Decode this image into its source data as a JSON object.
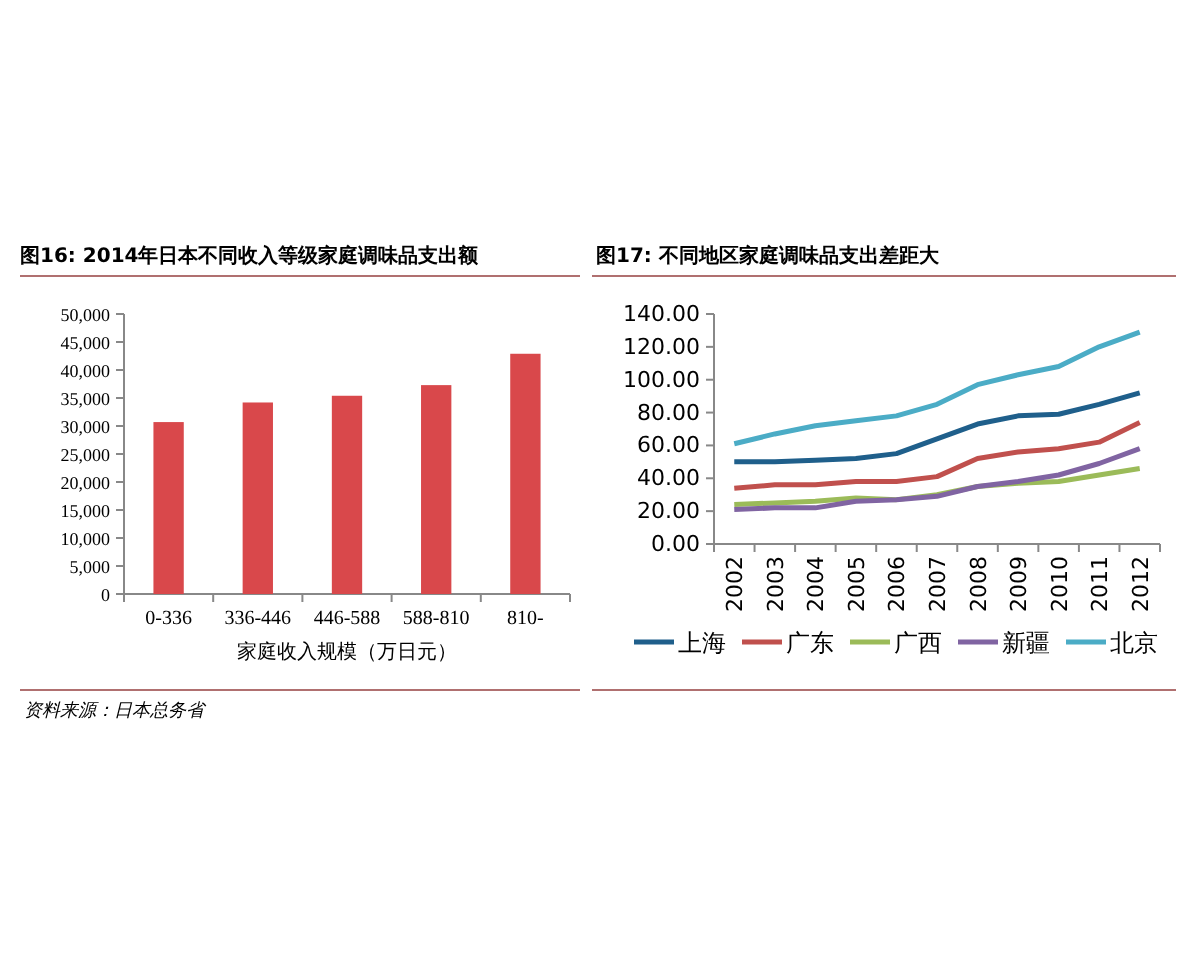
{
  "chart_data": [
    {
      "type": "bar",
      "title": "图16:  2014年日本不同收入等级家庭调味品支出额",
      "xlabel": "家庭收入规模（万日元）",
      "categories": [
        "0-336",
        "336-446",
        "446-588",
        "588-810",
        "810-"
      ],
      "values": [
        30700,
        34200,
        35400,
        37300,
        42900
      ],
      "color": "#d9484b",
      "ylim": [
        0,
        50000
      ],
      "yticks": [
        {
          "value": 0,
          "label": "0"
        },
        {
          "value": 5000,
          "label": "5,000"
        },
        {
          "value": 10000,
          "label": "10,000"
        },
        {
          "value": 15000,
          "label": "15,000"
        },
        {
          "value": 20000,
          "label": "20,000"
        },
        {
          "value": 25000,
          "label": "25,000"
        },
        {
          "value": 30000,
          "label": "30,000"
        },
        {
          "value": 35000,
          "label": "35,000"
        },
        {
          "value": 40000,
          "label": "40,000"
        },
        {
          "value": 45000,
          "label": "45,000"
        },
        {
          "value": 50000,
          "label": "50,000"
        }
      ],
      "annotations": [
        "资料来源：日本总务省"
      ]
    },
    {
      "type": "line",
      "title": "图17:  不同地区家庭调味品支出差距大",
      "categories": [
        "2002",
        "2003",
        "2004",
        "2005",
        "2006",
        "2007",
        "2008",
        "2009",
        "2010",
        "2011",
        "2012"
      ],
      "legend": "bottom",
      "ylim": [
        0,
        140
      ],
      "yticks": [
        {
          "value": 0,
          "label": "0.00"
        },
        {
          "value": 20,
          "label": "20.00"
        },
        {
          "value": 40,
          "label": "40.00"
        },
        {
          "value": 60,
          "label": "60.00"
        },
        {
          "value": 80,
          "label": "80.00"
        },
        {
          "value": 100,
          "label": "100.00"
        },
        {
          "value": 120,
          "label": "120.00"
        },
        {
          "value": 140,
          "label": "140.00"
        }
      ],
      "series": [
        {
          "name": "上海",
          "color": "#1f5f8b",
          "values": [
            50,
            50,
            51,
            52,
            55,
            64,
            73,
            78,
            79,
            85,
            92
          ]
        },
        {
          "name": "广东",
          "color": "#c0504d",
          "values": [
            34,
            36,
            36,
            38,
            38,
            41,
            52,
            56,
            58,
            62,
            74
          ]
        },
        {
          "name": "广西",
          "color": "#9bbb59",
          "values": [
            24,
            25,
            26,
            28,
            27,
            30,
            35,
            37,
            38,
            42,
            46
          ]
        },
        {
          "name": "新疆",
          "color": "#8064a2",
          "values": [
            21,
            22,
            22,
            26,
            27,
            29,
            35,
            38,
            42,
            49,
            58
          ]
        },
        {
          "name": "北京",
          "color": "#4bacc6",
          "values": [
            61,
            67,
            72,
            75,
            78,
            85,
            97,
            103,
            108,
            120,
            129
          ]
        }
      ]
    }
  ]
}
